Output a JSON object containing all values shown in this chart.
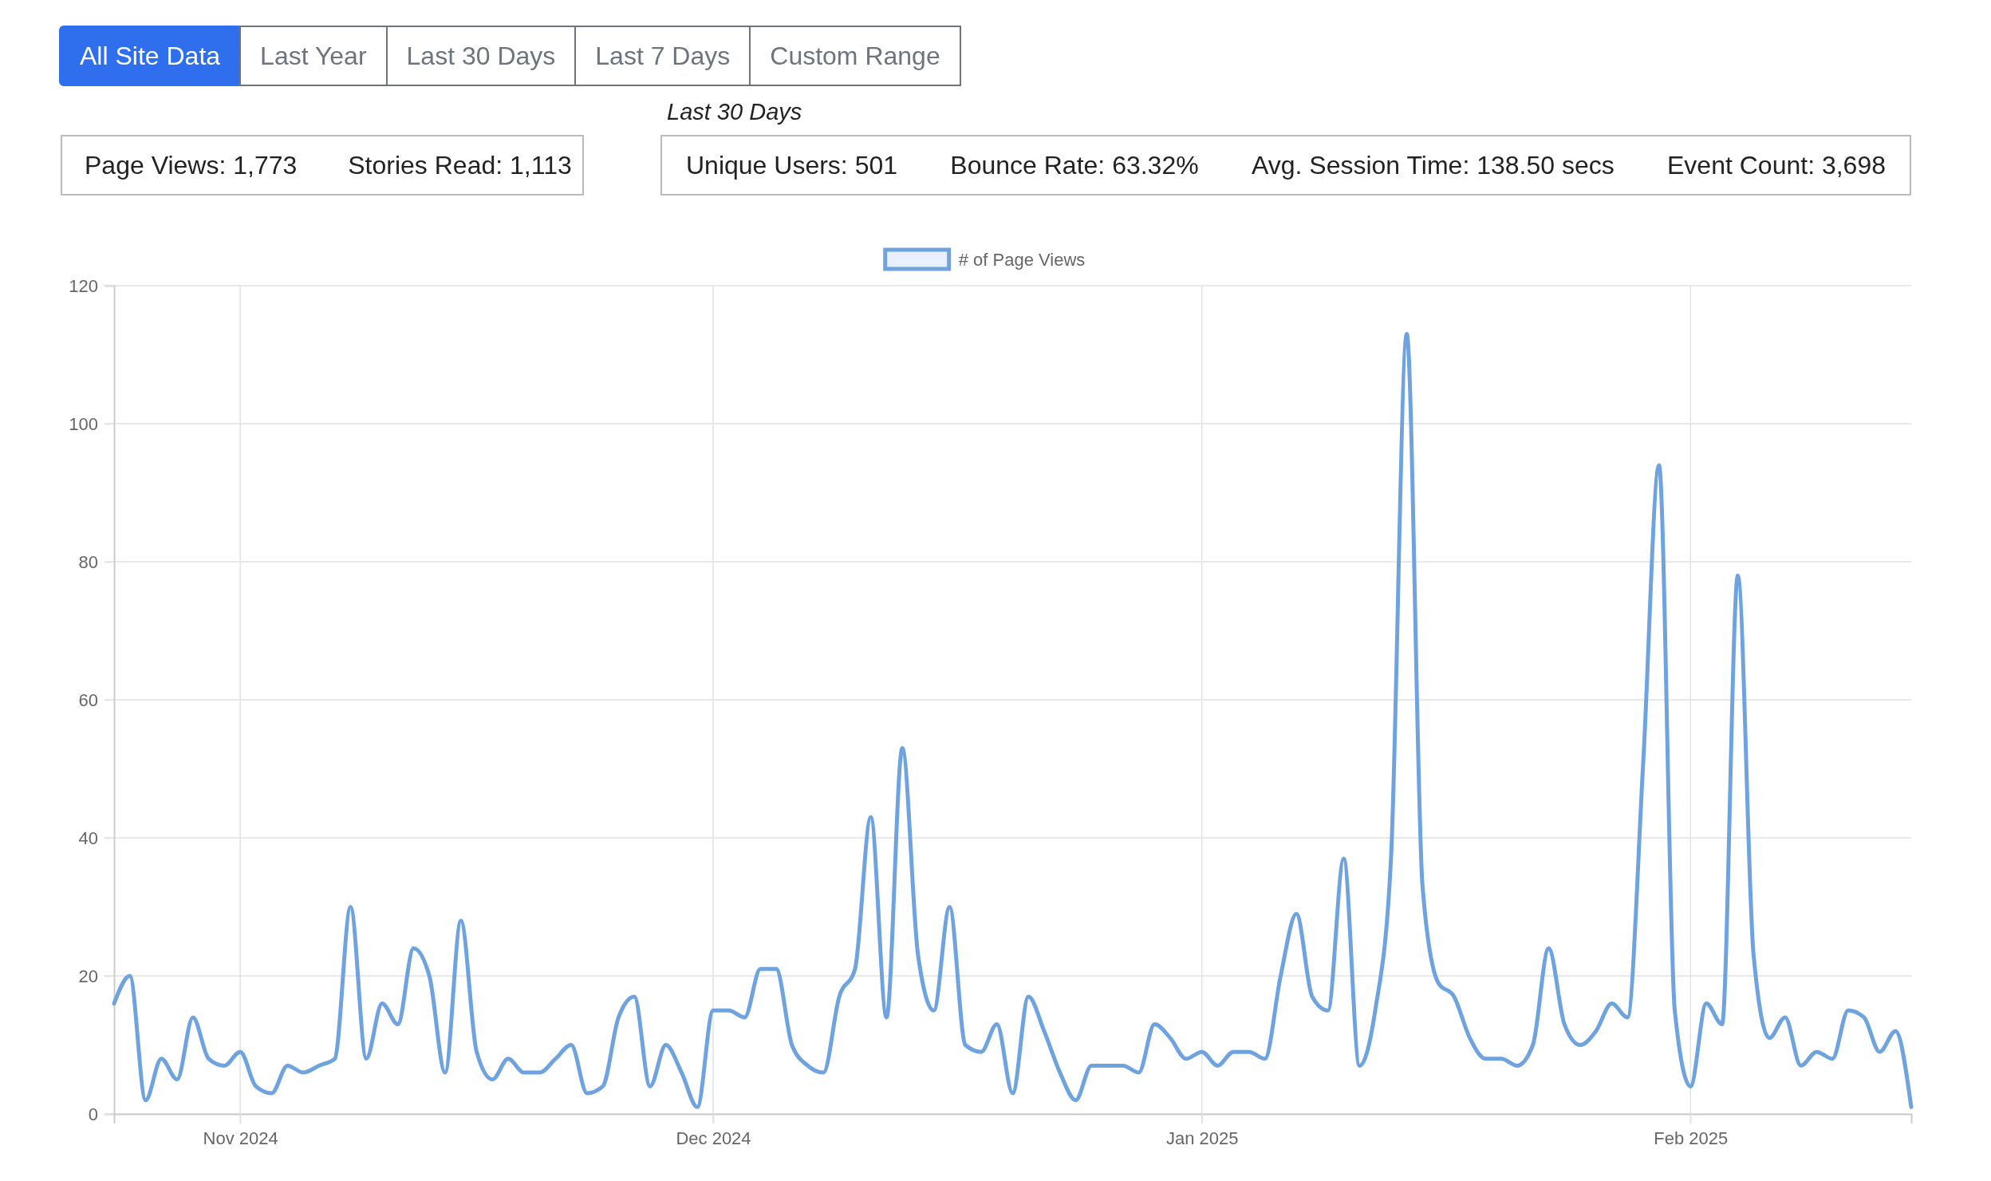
{
  "chart_data": [
    {
      "type": "other",
      "annotations": [
        "All Site Data",
        "Last Year",
        "Last 30 Days",
        "Last 7 Days",
        "Custom Range"
      ]
    },
    {
      "type": "other",
      "annotations": [
        "Page Views: 1,773",
        "Stories Read: 1,113"
      ]
    },
    {
      "type": "other",
      "title": "Last 30 Days",
      "annotations": [
        "Unique Users: 501",
        "Bounce Rate: 63.32%",
        "Avg. Session Time: 138.50 secs",
        "Event Count: 3,698"
      ]
    },
    {
      "type": "line",
      "x": [
        "2024-10-24",
        "2024-10-25",
        "2024-10-26",
        "2024-10-27",
        "2024-10-28",
        "2024-10-29",
        "2024-10-30",
        "2024-10-31",
        "2024-11-01",
        "2024-11-02",
        "2024-11-03",
        "2024-11-04",
        "2024-11-05",
        "2024-11-06",
        "2024-11-07",
        "2024-11-08",
        "2024-11-09",
        "2024-11-10",
        "2024-11-11",
        "2024-11-12",
        "2024-11-13",
        "2024-11-14",
        "2024-11-15",
        "2024-11-16",
        "2024-11-17",
        "2024-11-18",
        "2024-11-19",
        "2024-11-20",
        "2024-11-21",
        "2024-11-22",
        "2024-11-23",
        "2024-11-24",
        "2024-11-25",
        "2024-11-26",
        "2024-11-27",
        "2024-11-28",
        "2024-11-29",
        "2024-11-30",
        "2024-12-01",
        "2024-12-02",
        "2024-12-03",
        "2024-12-04",
        "2024-12-05",
        "2024-12-06",
        "2024-12-07",
        "2024-12-08",
        "2024-12-09",
        "2024-12-10",
        "2024-12-11",
        "2024-12-12",
        "2024-12-13",
        "2024-12-14",
        "2024-12-15",
        "2024-12-16",
        "2024-12-17",
        "2024-12-18",
        "2024-12-19",
        "2024-12-20",
        "2024-12-21",
        "2024-12-22",
        "2024-12-23",
        "2024-12-24",
        "2024-12-25",
        "2024-12-26",
        "2024-12-27",
        "2024-12-28",
        "2024-12-29",
        "2024-12-30",
        "2024-12-31",
        "2025-01-01",
        "2025-01-02",
        "2025-01-03",
        "2025-01-04",
        "2025-01-05",
        "2025-01-06",
        "2025-01-07",
        "2025-01-08",
        "2025-01-09",
        "2025-01-10",
        "2025-01-11",
        "2025-01-12",
        "2025-01-13",
        "2025-01-14",
        "2025-01-15",
        "2025-01-16",
        "2025-01-17",
        "2025-01-18",
        "2025-01-19",
        "2025-01-20",
        "2025-01-21",
        "2025-01-22",
        "2025-01-23",
        "2025-01-24",
        "2025-01-25",
        "2025-01-26",
        "2025-01-27",
        "2025-01-28",
        "2025-01-29",
        "2025-01-30",
        "2025-01-31",
        "2025-02-01",
        "2025-02-02",
        "2025-02-03",
        "2025-02-04",
        "2025-02-05",
        "2025-02-06",
        "2025-02-07",
        "2025-02-08",
        "2025-02-09",
        "2025-02-10",
        "2025-02-11",
        "2025-02-12",
        "2025-02-13",
        "2025-02-14",
        "2025-02-15"
      ],
      "series": [
        {
          "name": "# of Page Views",
          "color": "#6ea3e0",
          "values": [
            16,
            20,
            2,
            8,
            5,
            14,
            8,
            7,
            9,
            4,
            3,
            7,
            6,
            7,
            8,
            30,
            8,
            16,
            13,
            24,
            20,
            6,
            28,
            9,
            5,
            8,
            6,
            6,
            8,
            10,
            3,
            4,
            14,
            17,
            4,
            10,
            6,
            1,
            15,
            15,
            14,
            21,
            21,
            10,
            7,
            6,
            17,
            21,
            43,
            14,
            53,
            23,
            15,
            30,
            10,
            9,
            13,
            3,
            17,
            12,
            6,
            2,
            7,
            7,
            7,
            6,
            13,
            11,
            8,
            9,
            7,
            9,
            9,
            8,
            20,
            29,
            17,
            15,
            37,
            7,
            15,
            37,
            113,
            33,
            19,
            17,
            11,
            8,
            8,
            7,
            10,
            24,
            13,
            10,
            12,
            16,
            14,
            51,
            94,
            15,
            4,
            16,
            13,
            78,
            23,
            11,
            14,
            7,
            9,
            8,
            15,
            14,
            9,
            12,
            1
          ]
        }
      ],
      "xlim": [
        "2024-10-24",
        "2025-02-15"
      ],
      "xticks": [
        {
          "value": "2024-11-01",
          "label": "Nov 2024"
        },
        {
          "value": "2024-12-01",
          "label": "Dec 2024"
        },
        {
          "value": "2025-01-01",
          "label": "Jan 2025"
        },
        {
          "value": "2025-02-01",
          "label": "Feb 2025"
        }
      ],
      "ylim": [
        0,
        120
      ],
      "yticks": [
        0,
        20,
        40,
        60,
        80,
        100,
        120
      ],
      "grid": true,
      "legend": "top",
      "marker": "none",
      "line_style": "solid"
    }
  ]
}
